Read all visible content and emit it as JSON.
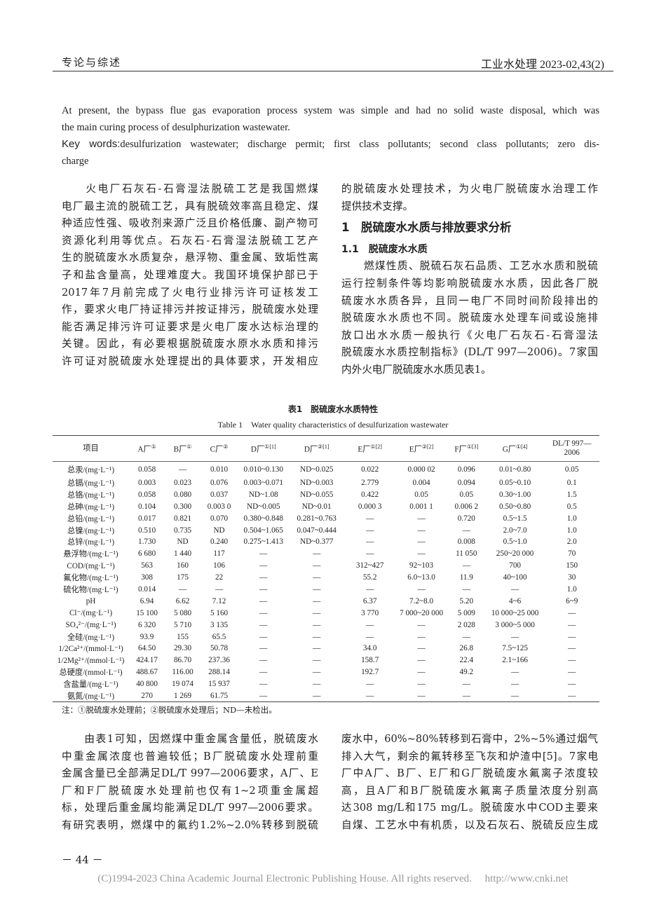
{
  "header": {
    "section": "专论与综述",
    "journal": "工业水处理 2023-02,43(2)"
  },
  "abstract_en": {
    "lines": [
      "At present, the bypass flue gas evaporation process system was simple and had no solid waste disposal, which was",
      "the main curing process of desulphurization wastewater."
    ],
    "keywords_label": "Key words:",
    "keywords_lines": [
      "desulfurization wastewater; discharge permit; first class pollutants; second class pollutants; zero dis-",
      "charge"
    ]
  },
  "left_col_top": [
    "　　火电厂石灰石-石膏湿法脱硫工艺是我国燃煤",
    "电厂最主流的脱硫工艺，具有脱硫效率高且稳定、煤",
    "种适应性强、吸收剂来源广泛且价格低廉、副产物可",
    "资源化利用等优点。石灰石-石膏湿法脱硫工艺产",
    "生的脱硫废水水质复杂，悬浮物、重金属、致垢性离",
    "子和盐含量高，处理难度大。我国环境保护部已于",
    "2017年7月前完成了火电行业排污许可证核发工",
    "作，要求火电厂持证排污并按证排污，脱硫废水处理",
    "能否满足排污许可证要求是火电厂废水达标治理的",
    "关键。因此，有必要根据脱硫废水原水水质和排污",
    "许可证对脱硫废水处理提出的具体要求，开发相应"
  ],
  "right_col_top": {
    "intro": [
      "的脱硫废水处理技术，为火电厂脱硫废水治理工作",
      "提供技术支撑。"
    ],
    "section": "1　脱硫废水水质与排放要求分析",
    "subsection": "1.1　脱硫废水水质",
    "para": [
      "　　燃煤性质、脱硫石灰石品质、工艺水水质和脱硫",
      "运行控制条件等均影响脱硫废水水质，因此各厂脱",
      "硫废水水质各异，且同一电厂不同时间阶段排出的",
      "脱硫废水水质也不同。脱硫废水处理车间或设施排",
      "放口出水水质一般执行《火电厂石灰石-石膏湿法",
      "脱硫废水水质控制指标》(DL/T 997—2006)。7家国",
      "内外火电厂脱硫废水水质见表1。"
    ]
  },
  "table": {
    "title_cn": "表1　脱硫废水水质特性",
    "title_en": "Table 1　Water quality characteristics of desulfurization wastewater",
    "headers": [
      {
        "t": "项目",
        "s": ""
      },
      {
        "t": "A厂",
        "s": "①"
      },
      {
        "t": "B厂",
        "s": "①"
      },
      {
        "t": "C厂",
        "s": "②"
      },
      {
        "t": "D厂",
        "s": "①[1]"
      },
      {
        "t": "D厂",
        "s": "②[1]"
      },
      {
        "t": "E厂",
        "s": "①[2]"
      },
      {
        "t": "E厂",
        "s": "②[2]"
      },
      {
        "t": "F厂",
        "s": "①[3]"
      },
      {
        "t": "G厂",
        "s": "①[4]"
      },
      {
        "t": "DL/T 997—2006",
        "s": ""
      }
    ],
    "rows": [
      [
        "总汞/(mg·L⁻¹)",
        "0.058",
        "—",
        "0.010",
        "0.010~0.130",
        "ND~0.025",
        "0.022",
        "0.000 02",
        "0.096",
        "0.01~0.80",
        "0.05"
      ],
      [
        "总镉/(mg·L⁻¹)",
        "0.003",
        "0.023",
        "0.076",
        "0.003~0.071",
        "ND~0.003",
        "2.779",
        "0.004",
        "0.094",
        "0.05~0.10",
        "0.1"
      ],
      [
        "总铬/(mg·L⁻¹)",
        "0.058",
        "0.080",
        "0.037",
        "ND~1.08",
        "ND~0.055",
        "0.422",
        "0.05",
        "0.05",
        "0.30~1.00",
        "1.5"
      ],
      [
        "总砷/(mg·L⁻¹)",
        "0.104",
        "0.300",
        "0.003 0",
        "ND~0.005",
        "ND~0.01",
        "0.000 3",
        "0.001 1",
        "0.006 2",
        "0.50~0.80",
        "0.5"
      ],
      [
        "总铅/(mg·L⁻¹)",
        "0.017",
        "0.821",
        "0.070",
        "0.380~0.848",
        "0.281~0.763",
        "—",
        "—",
        "0.720",
        "0.5~1.5",
        "1.0"
      ],
      [
        "总镍/(mg·L⁻¹)",
        "0.510",
        "0.735",
        "ND",
        "0.504~1.065",
        "0.047~0.444",
        "—",
        "—",
        "—",
        "2.0~7.0",
        "1.0"
      ],
      [
        "总锌/(mg·L⁻¹)",
        "1.730",
        "ND",
        "0.240",
        "0.275~1.413",
        "ND~0.377",
        "—",
        "—",
        "0.008",
        "0.5~1.0",
        "2.0"
      ],
      [
        "悬浮物/(mg·L⁻¹)",
        "6 680",
        "1 440",
        "117",
        "—",
        "—",
        "—",
        "—",
        "11 050",
        "250~20 000",
        "70"
      ],
      [
        "COD/(mg·L⁻¹)",
        "563",
        "160",
        "106",
        "—",
        "—",
        "312~427",
        "92~103",
        "—",
        "700",
        "150"
      ],
      [
        "氟化物/(mg·L⁻¹)",
        "308",
        "175",
        "22",
        "—",
        "—",
        "55.2",
        "6.0~13.0",
        "11.9",
        "40~100",
        "30"
      ],
      [
        "硫化物/(mg·L⁻¹)",
        "0.014",
        "—",
        "—",
        "—",
        "—",
        "—",
        "—",
        "—",
        "—",
        "1.0"
      ],
      [
        "pH",
        "6.94",
        "6.62",
        "7.12",
        "—",
        "—",
        "6.37",
        "7.2~8.0",
        "5.20",
        "4~6",
        "6~9"
      ],
      [
        "Cl⁻/(mg·L⁻¹)",
        "15 100",
        "5 080",
        "5 160",
        "—",
        "—",
        "3 770",
        "7 000~20 000",
        "5 009",
        "10 000~25 000",
        "—"
      ],
      [
        "SO₄²⁻/(mg·L⁻¹)",
        "6 320",
        "5 710",
        "3 135",
        "—",
        "—",
        "—",
        "—",
        "2 028",
        "3 000~5 000",
        "—"
      ],
      [
        "全硅/(mg·L⁻¹)",
        "93.9",
        "155",
        "65.5",
        "—",
        "—",
        "—",
        "—",
        "—",
        "—",
        "—"
      ],
      [
        "1/2Ca²⁺/(mmol·L⁻¹)",
        "64.50",
        "29.30",
        "50.78",
        "—",
        "—",
        "34.0",
        "—",
        "26.8",
        "7.5~125",
        "—"
      ],
      [
        "1/2Mg²⁺/(mmol·L⁻¹)",
        "424.17",
        "86.70",
        "237.36",
        "—",
        "—",
        "158.7",
        "—",
        "22.4",
        "2.1~166",
        "—"
      ],
      [
        "总硬度/(mmol·L⁻¹)",
        "488.67",
        "116.00",
        "288.14",
        "—",
        "—",
        "192.7",
        "—",
        "49.2",
        "—",
        "—"
      ],
      [
        "含盐量/(mg·L⁻¹)",
        "40 800",
        "19 074",
        "15 937",
        "—",
        "—",
        "—",
        "—",
        "—",
        "—",
        "—"
      ],
      [
        "氨氮/(mg·L⁻¹)",
        "270",
        "1 269",
        "61.75",
        "—",
        "—",
        "—",
        "—",
        "—",
        "—",
        "—"
      ]
    ],
    "note": "注：①脱硫废水处理前；②脱硫废水处理后；ND—未检出。"
  },
  "left_col_bottom": [
    "　　由表1可知，因燃煤中重金属含量低，脱硫废水",
    "中重金属浓度也普遍较低；B厂脱硫废水处理前重",
    "金属含量已全部满足DL/T 997—2006要求，A厂、E",
    "厂和F厂脱硫废水处理前也仅有1~2项重金属超",
    "标，处理后重金属均能满足DL/T 997—2006要求。",
    "有研究表明，燃煤中的氟约1.2%~2.0%转移到脱硫"
  ],
  "right_col_bottom": [
    "废水中，60%~80%转移到石膏中，2%~5%通过烟气",
    "排入大气，剩余的氟转移至飞灰和炉渣中[5]。7家电",
    "厂中A厂、B厂、E厂和G厂脱硫废水氟离子浓度较",
    "高，且A厂和B厂脱硫废水氟离子质量浓度分别高",
    "达308 mg/L和175 mg/L。脱硫废水中COD主要来",
    "自煤、工艺水中有机质，以及石灰石、脱硫反应生成"
  ],
  "page_number": "－ 44 －",
  "footer": "(C)1994-2023 China Academic Journal Electronic Publishing House. All rights reserved.　 http://www.cnki.net"
}
